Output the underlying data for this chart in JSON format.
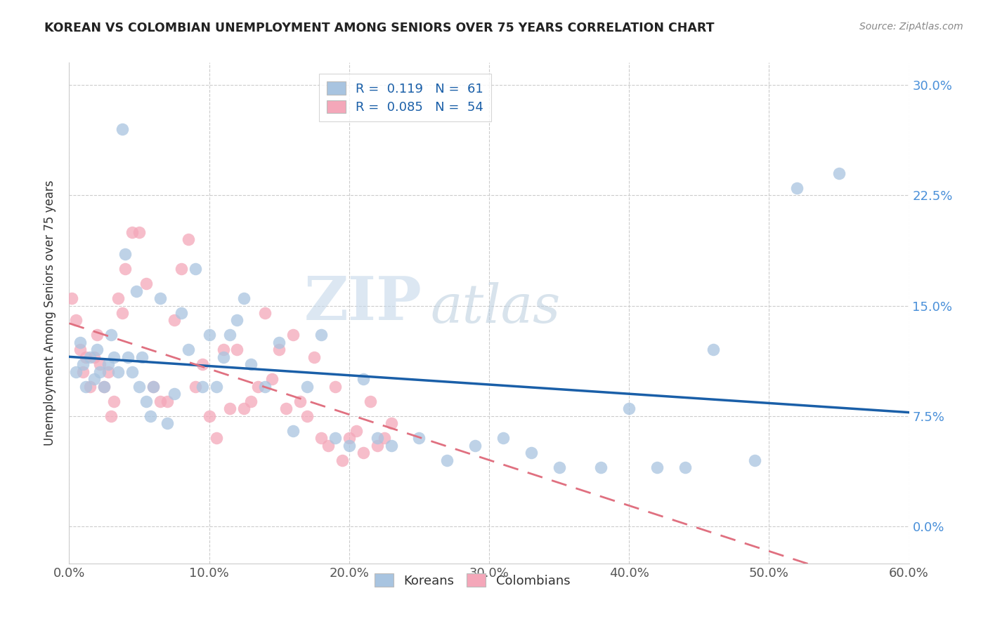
{
  "title": "KOREAN VS COLOMBIAN UNEMPLOYMENT AMONG SENIORS OVER 75 YEARS CORRELATION CHART",
  "source": "Source: ZipAtlas.com",
  "ylabel": "Unemployment Among Seniors over 75 years",
  "xlim": [
    0.0,
    0.6
  ],
  "ylim": [
    -0.025,
    0.315
  ],
  "legend_korean_R": "0.119",
  "legend_korean_N": "61",
  "legend_colombian_R": "0.085",
  "legend_colombian_N": "54",
  "korean_color": "#a8c4e0",
  "colombian_color": "#f4a7b9",
  "korean_line_color": "#1a5fa8",
  "colombian_line_color": "#e07080",
  "watermark_zip": "ZIP",
  "watermark_atlas": "atlas",
  "korean_x": [
    0.005,
    0.008,
    0.01,
    0.012,
    0.015,
    0.018,
    0.02,
    0.022,
    0.025,
    0.028,
    0.03,
    0.032,
    0.035,
    0.038,
    0.04,
    0.042,
    0.045,
    0.048,
    0.05,
    0.052,
    0.055,
    0.058,
    0.06,
    0.065,
    0.07,
    0.075,
    0.08,
    0.085,
    0.09,
    0.095,
    0.1,
    0.105,
    0.11,
    0.115,
    0.12,
    0.125,
    0.13,
    0.14,
    0.15,
    0.16,
    0.17,
    0.18,
    0.19,
    0.2,
    0.21,
    0.22,
    0.23,
    0.25,
    0.27,
    0.29,
    0.31,
    0.33,
    0.35,
    0.38,
    0.4,
    0.42,
    0.44,
    0.46,
    0.49,
    0.52,
    0.55
  ],
  "korean_y": [
    0.105,
    0.125,
    0.11,
    0.095,
    0.115,
    0.1,
    0.12,
    0.105,
    0.095,
    0.11,
    0.13,
    0.115,
    0.105,
    0.27,
    0.185,
    0.115,
    0.105,
    0.16,
    0.095,
    0.115,
    0.085,
    0.075,
    0.095,
    0.155,
    0.07,
    0.09,
    0.145,
    0.12,
    0.175,
    0.095,
    0.13,
    0.095,
    0.115,
    0.13,
    0.14,
    0.155,
    0.11,
    0.095,
    0.125,
    0.065,
    0.095,
    0.13,
    0.06,
    0.055,
    0.1,
    0.06,
    0.055,
    0.06,
    0.045,
    0.055,
    0.06,
    0.05,
    0.04,
    0.04,
    0.08,
    0.04,
    0.04,
    0.12,
    0.045,
    0.23,
    0.24
  ],
  "colombian_x": [
    0.002,
    0.005,
    0.008,
    0.01,
    0.012,
    0.015,
    0.018,
    0.02,
    0.022,
    0.025,
    0.028,
    0.03,
    0.032,
    0.035,
    0.038,
    0.04,
    0.045,
    0.05,
    0.055,
    0.06,
    0.065,
    0.07,
    0.075,
    0.08,
    0.085,
    0.09,
    0.095,
    0.1,
    0.105,
    0.11,
    0.115,
    0.12,
    0.125,
    0.13,
    0.135,
    0.14,
    0.145,
    0.15,
    0.155,
    0.16,
    0.165,
    0.17,
    0.175,
    0.18,
    0.185,
    0.19,
    0.195,
    0.2,
    0.205,
    0.21,
    0.215,
    0.22,
    0.225,
    0.23
  ],
  "colombian_y": [
    0.155,
    0.14,
    0.12,
    0.105,
    0.115,
    0.095,
    0.115,
    0.13,
    0.11,
    0.095,
    0.105,
    0.075,
    0.085,
    0.155,
    0.145,
    0.175,
    0.2,
    0.2,
    0.165,
    0.095,
    0.085,
    0.085,
    0.14,
    0.175,
    0.195,
    0.095,
    0.11,
    0.075,
    0.06,
    0.12,
    0.08,
    0.12,
    0.08,
    0.085,
    0.095,
    0.145,
    0.1,
    0.12,
    0.08,
    0.13,
    0.085,
    0.075,
    0.115,
    0.06,
    0.055,
    0.095,
    0.045,
    0.06,
    0.065,
    0.05,
    0.085,
    0.055,
    0.06,
    0.07
  ],
  "xtick_vals": [
    0.0,
    0.1,
    0.2,
    0.3,
    0.4,
    0.5,
    0.6
  ],
  "xtick_labels": [
    "0.0%",
    "10.0%",
    "20.0%",
    "30.0%",
    "40.0%",
    "50.0%",
    "60.0%"
  ],
  "ytick_vals": [
    0.0,
    0.075,
    0.15,
    0.225,
    0.3
  ],
  "ytick_labels": [
    "0.0%",
    "7.5%",
    "15.0%",
    "22.5%",
    "30.0%"
  ]
}
